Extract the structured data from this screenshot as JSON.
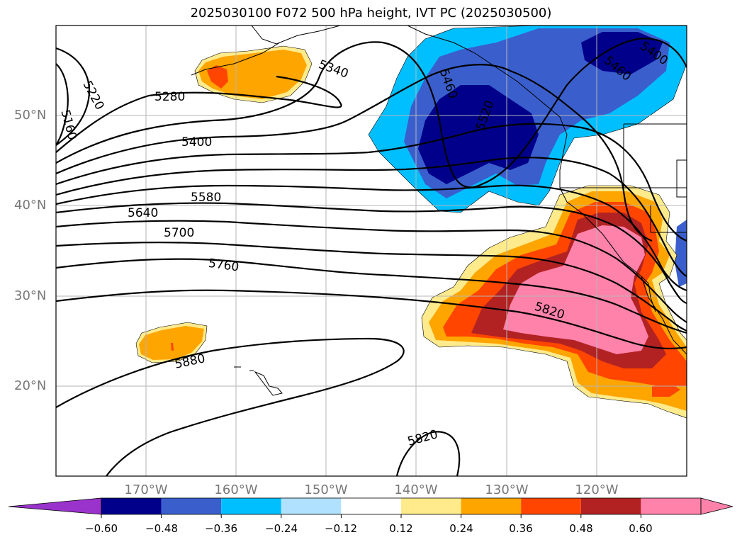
{
  "title": "2025030100 F072 500 hPa height, IVT PC (2025030500)",
  "map": {
    "projection": "PlateCarree",
    "extent": {
      "lon_min": -180,
      "lon_max": -110,
      "lat_min": 10,
      "lat_max": 60
    },
    "lat_ticks": [
      {
        "value": 50,
        "label": "50°N"
      },
      {
        "value": 40,
        "label": "40°N"
      },
      {
        "value": 30,
        "label": "30°N"
      },
      {
        "value": 20,
        "label": "20°N"
      }
    ],
    "lon_ticks": [
      {
        "value": -170,
        "label": "170°W"
      },
      {
        "value": -160,
        "label": "160°W"
      },
      {
        "value": -150,
        "label": "150°W"
      },
      {
        "value": -140,
        "label": "140°W"
      },
      {
        "value": -130,
        "label": "130°W"
      },
      {
        "value": -120,
        "label": "120°W"
      }
    ],
    "contour_labels": [
      "5160",
      "5220",
      "5280",
      "5340",
      "5400",
      "5460",
      "5520",
      "5580",
      "5640",
      "5700",
      "5760",
      "5820",
      "5880"
    ],
    "grid": true
  },
  "colorbar": {
    "ticks": [
      "−0.60",
      "−0.48",
      "−0.36",
      "−0.24",
      "−0.12",
      "0.12",
      "0.24",
      "0.36",
      "0.48",
      "0.60"
    ],
    "colors": [
      "#9a33cc",
      "#00008b",
      "#3a5fcd",
      "#00bfff",
      "#b0e2ff",
      "#ffffff",
      "#ffeb8c",
      "#ffa500",
      "#ff4500",
      "#b22222",
      "#ff82ab"
    ],
    "extend": "both"
  }
}
